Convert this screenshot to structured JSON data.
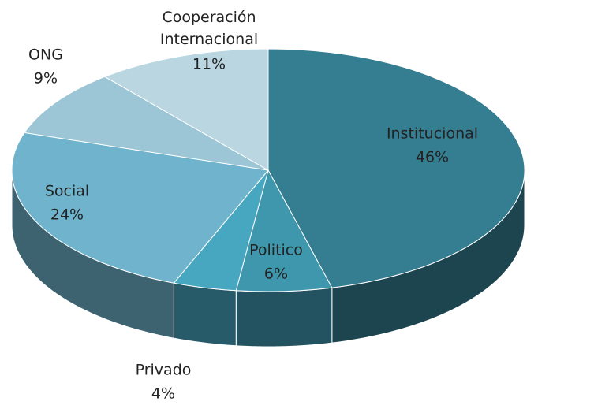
{
  "chart_data": {
    "type": "pie3d",
    "categories": [
      "Institucional",
      "Politico",
      "Privado",
      "Social",
      "ONG",
      "Cooperación Internacional"
    ],
    "values": [
      46,
      6,
      4,
      24,
      9,
      11
    ],
    "value_labels": [
      "46%",
      "6%",
      "4%",
      "24%",
      "9%",
      "11%"
    ],
    "colors": [
      "#357d91",
      "#3f97ae",
      "#47a6c0",
      "#6fb4cc",
      "#9cc6d6",
      "#b9d6e1"
    ]
  }
}
